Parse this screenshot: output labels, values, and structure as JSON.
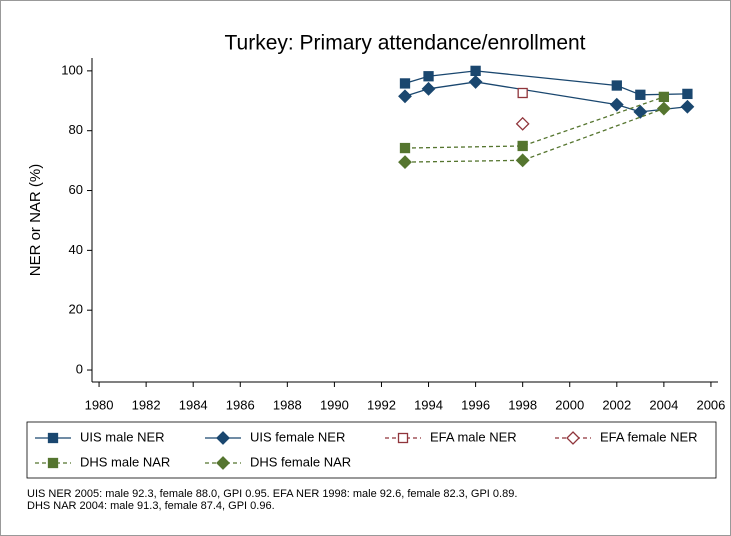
{
  "chart_data": {
    "type": "line",
    "title": "Turkey: Primary attendance/enrollment",
    "y_label": "NER or NAR (%)",
    "xlim": [
      1979.7,
      2006.3
    ],
    "xticks": [
      1980,
      1982,
      1984,
      1986,
      1988,
      1990,
      1992,
      1994,
      1996,
      1998,
      2000,
      2002,
      2004,
      2006
    ],
    "ylim": [
      -4,
      104.3
    ],
    "yticks": [
      0,
      20,
      40,
      60,
      80,
      100
    ],
    "series": [
      {
        "name": "UIS male NER",
        "color": "#1a476f",
        "marker": "square",
        "filled": true,
        "dashed": false,
        "x": [
          1993,
          1994,
          1996,
          2002,
          2003,
          2005
        ],
        "values": [
          95.8,
          98.2,
          100,
          95.1,
          92.0,
          92.3
        ]
      },
      {
        "name": "UIS female NER",
        "color": "#1a476f",
        "marker": "diamond",
        "filled": true,
        "dashed": false,
        "x": [
          1993,
          1994,
          1996,
          2002,
          2003,
          2005
        ],
        "values": [
          91.5,
          94.0,
          96.3,
          88.7,
          86.3,
          88.0
        ]
      },
      {
        "name": "EFA male NER",
        "color": "#90353b",
        "marker": "square",
        "filled": false,
        "dashed": true,
        "x": [
          1998
        ],
        "values": [
          92.6
        ]
      },
      {
        "name": "EFA female NER",
        "color": "#90353b",
        "marker": "diamond",
        "filled": false,
        "dashed": true,
        "x": [
          1998
        ],
        "values": [
          82.3
        ]
      },
      {
        "name": "DHS male NAR",
        "color": "#55752f",
        "marker": "square",
        "filled": true,
        "dashed": true,
        "x": [
          1993,
          1998,
          2004
        ],
        "values": [
          74.2,
          74.9,
          91.3
        ]
      },
      {
        "name": "DHS female NAR",
        "color": "#55752f",
        "marker": "diamond",
        "filled": true,
        "dashed": true,
        "x": [
          1993,
          1998,
          2004
        ],
        "values": [
          69.5,
          70.1,
          87.4
        ]
      }
    ],
    "notes": [
      "UIS NER 2005: male 92.3, female 88.0, GPI 0.95. EFA NER 1998: male 92.6, female 82.3, GPI 0.89.",
      "DHS NAR 2004: male 91.3, female 87.4, GPI 0.96."
    ]
  }
}
